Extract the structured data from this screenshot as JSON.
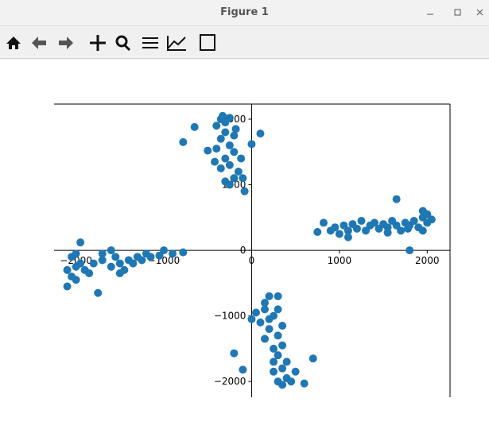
{
  "window": {
    "title": "Figure 1"
  },
  "chart_data": {
    "type": "scatter",
    "color": "#1f77b4",
    "xlim": [
      -2250,
      2260
    ],
    "ylim": [
      -2240,
      2230
    ],
    "xticks": [
      {
        "value": -2000,
        "label": "−2000"
      },
      {
        "value": -1000,
        "label": "−1000"
      },
      0,
      1000,
      2000
    ],
    "yticks": [
      {
        "value": -2000,
        "label": "−2000"
      },
      {
        "value": -1000,
        "label": "−1000"
      },
      0,
      1000,
      2000
    ],
    "x": [
      -350,
      -300,
      -250,
      -400,
      -650,
      -300,
      -200,
      -350,
      -250,
      -400,
      -500,
      -200,
      -300,
      -250,
      -350,
      -150,
      -200,
      -300,
      -250,
      -100,
      -80,
      -420,
      -780,
      0,
      100,
      -180,
      -330,
      -120,
      750,
      820,
      900,
      950,
      1000,
      1050,
      1100,
      1150,
      1200,
      1250,
      1300,
      1350,
      1400,
      1450,
      1500,
      1550,
      1600,
      1650,
      1700,
      1750,
      1800,
      1850,
      1900,
      1950,
      2000,
      2050,
      1650,
      1950,
      1800,
      1950,
      2000,
      1100,
      1550,
      1780,
      -2100,
      -2100,
      -2050,
      -2000,
      -2000,
      -1950,
      -1900,
      -2050,
      -2000,
      -1950,
      -1800,
      -1750,
      -1700,
      -1700,
      -1600,
      -1550,
      -1500,
      -1450,
      -1400,
      -1350,
      -1300,
      -1250,
      -1200,
      -1150,
      -1050,
      -1000,
      -900,
      -780,
      -1600,
      -1500,
      -1850,
      50,
      100,
      150,
      200,
      250,
      300,
      200,
      300,
      150,
      250,
      350,
      300,
      400,
      350,
      250,
      400,
      300,
      450,
      350,
      250,
      150,
      600,
      700,
      -100,
      -200,
      0,
      500,
      300,
      350,
      200
    ],
    "y": [
      2000,
      1950,
      2020,
      1900,
      1880,
      1800,
      1750,
      1700,
      1600,
      1550,
      1520,
      1500,
      1400,
      1300,
      1250,
      1200,
      1100,
      1050,
      1000,
      1100,
      900,
      1350,
      1650,
      1620,
      1780,
      1850,
      2050,
      1400,
      280,
      420,
      300,
      350,
      250,
      380,
      300,
      400,
      330,
      450,
      300,
      380,
      420,
      330,
      400,
      350,
      450,
      380,
      300,
      420,
      380,
      450,
      350,
      500,
      420,
      470,
      780,
      600,
      0,
      300,
      550,
      200,
      270,
      330,
      -300,
      -550,
      -400,
      -250,
      -450,
      -200,
      -300,
      -100,
      -50,
      120,
      -200,
      -650,
      -150,
      -50,
      -250,
      -100,
      -200,
      -300,
      -150,
      -200,
      -100,
      -150,
      -50,
      -100,
      -80,
      0,
      -50,
      -30,
      0,
      -350,
      -350,
      -950,
      -1100,
      -800,
      -700,
      -1000,
      -900,
      -1200,
      -1300,
      -1350,
      -1500,
      -1450,
      -1600,
      -1700,
      -1800,
      -1850,
      -1950,
      -2000,
      -2000,
      -2050,
      -1700,
      -900,
      -2030,
      -1650,
      -1820,
      -1570,
      -1050,
      -1850,
      -700,
      -1150,
      -1050
    ]
  }
}
